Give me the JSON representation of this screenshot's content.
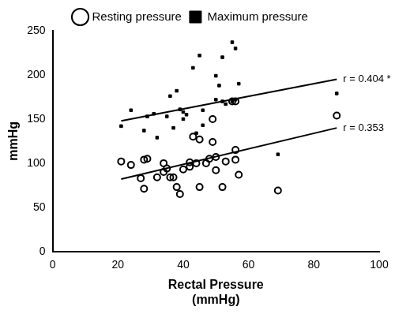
{
  "chart_data": {
    "type": "scatter",
    "x_label": [
      "Rectal Pressure",
      "(mmHg)"
    ],
    "y_label": "mmHg",
    "xlim": [
      0,
      100
    ],
    "xticks": [
      0,
      20,
      40,
      60,
      80,
      100
    ],
    "ylim": [
      0,
      250
    ],
    "yticks": [
      0,
      50,
      100,
      150,
      200,
      250
    ],
    "grid": false,
    "legend": "top",
    "series": [
      {
        "name": "Resting pressure",
        "color": "#000000",
        "marker": "open_circle",
        "x": [
          21,
          24,
          27,
          28,
          28,
          29,
          32,
          34,
          34,
          35,
          36,
          37,
          38,
          39,
          40,
          42,
          42,
          43,
          44,
          45,
          45,
          47,
          48,
          49,
          49,
          50,
          50,
          52,
          53,
          55,
          56,
          56,
          56,
          57,
          69,
          87
        ],
        "values": [
          102,
          98,
          83,
          71,
          104,
          105,
          84,
          100,
          90,
          94,
          84,
          84,
          73,
          65,
          93,
          101,
          96,
          130,
          100,
          127,
          73,
          100,
          105,
          124,
          150,
          107,
          92,
          73,
          102,
          170,
          104,
          115,
          170,
          87,
          69,
          154
        ],
        "fit": {
          "x": [
            21,
            87
          ],
          "values": [
            82,
            140
          ],
          "label": "r = 0.353"
        }
      },
      {
        "name": "Maximum pressure",
        "color": "#000000",
        "marker": "square",
        "x": [
          21,
          24,
          28,
          29,
          31,
          32,
          35,
          36,
          37,
          38,
          39,
          40,
          40,
          41,
          43,
          44,
          45,
          46,
          46,
          50,
          50,
          51,
          52,
          52,
          53,
          55,
          55,
          56,
          56,
          57,
          69,
          87
        ],
        "values": [
          142,
          160,
          137,
          153,
          156,
          129,
          153,
          176,
          140,
          182,
          161,
          158,
          150,
          155,
          208,
          134,
          222,
          160,
          143,
          199,
          172,
          188,
          170,
          220,
          167,
          237,
          170,
          230,
          172,
          190,
          110,
          179
        ],
        "fit": {
          "x": [
            21,
            87
          ],
          "values": [
            148,
            195
          ],
          "label": "r = 0.404 *"
        }
      }
    ]
  }
}
